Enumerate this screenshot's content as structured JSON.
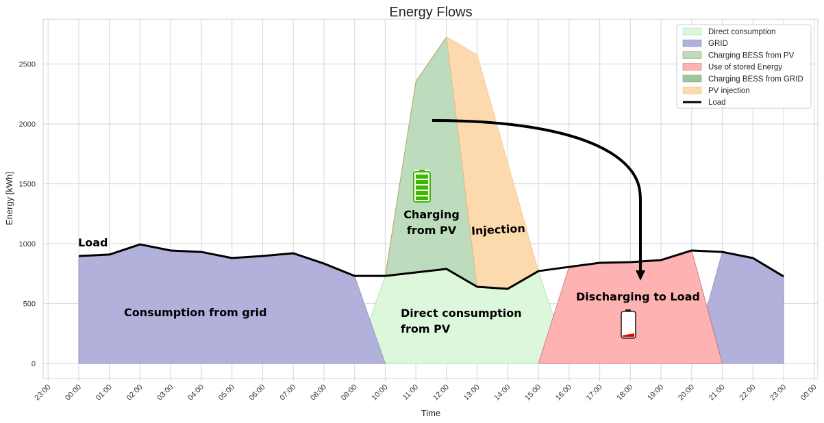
{
  "chart_data": {
    "type": "area",
    "title": "Energy Flows",
    "xlabel": "Time",
    "ylabel": "Energy [kWh]",
    "x_tick_labels": [
      "23:00",
      "00:00",
      "01:00",
      "02:00",
      "03:00",
      "04:00",
      "05:00",
      "06:00",
      "07:00",
      "08:00",
      "09:00",
      "10:00",
      "11:00",
      "12:00",
      "13:00",
      "14:00",
      "15:00",
      "16:00",
      "17:00",
      "18:00",
      "19:00",
      "20:00",
      "21:00",
      "22:00",
      "23:00",
      "00:00"
    ],
    "y_ticks": [
      0,
      500,
      1000,
      1500,
      2000,
      2500
    ],
    "ylim": [
      -130,
      2870
    ],
    "grid": true,
    "legend_position": "top-right",
    "x": [
      "00:00",
      "01:00",
      "02:00",
      "03:00",
      "04:00",
      "05:00",
      "06:00",
      "07:00",
      "08:00",
      "09:00",
      "10:00",
      "11:00",
      "12:00",
      "13:00",
      "14:00",
      "15:00",
      "16:00",
      "17:00",
      "18:00",
      "19:00",
      "20:00",
      "21:00",
      "22:00",
      "23:00"
    ],
    "series": [
      {
        "name": "Direct consumption",
        "kind": "area",
        "stack": "ground",
        "color": "#dcf7dc",
        "edge": "#9ed99e",
        "values": [
          0,
          0,
          0,
          0,
          0,
          0,
          0,
          0,
          0,
          0,
          731,
          760,
          789,
          640,
          623,
          771,
          0,
          0,
          0,
          0,
          0,
          0,
          0,
          0
        ]
      },
      {
        "name": "GRID",
        "kind": "area",
        "stack": "ground",
        "color": "#b1b1dc",
        "edge": "#7f7fb5",
        "values": [
          897,
          909,
          994,
          943,
          931,
          880,
          897,
          920,
          834,
          731,
          0,
          0,
          0,
          0,
          0,
          0,
          0,
          0,
          0,
          0,
          0,
          931,
          880,
          726
        ]
      },
      {
        "name": "Charging BESS from PV",
        "kind": "area",
        "stack": "load",
        "color": "#bddbbd",
        "edge": "#b08030",
        "values": [
          0,
          0,
          0,
          0,
          0,
          0,
          0,
          0,
          0,
          0,
          0,
          1594,
          1937,
          0,
          0,
          0,
          0,
          0,
          0,
          0,
          0,
          0,
          0,
          0
        ]
      },
      {
        "name": "Use of stored Energy",
        "kind": "area",
        "stack": "ground",
        "color": "#ffb2b2",
        "edge": "#b86060",
        "values": [
          0,
          0,
          0,
          0,
          0,
          0,
          0,
          0,
          0,
          0,
          0,
          0,
          0,
          0,
          0,
          0,
          806,
          840,
          846,
          863,
          943,
          0,
          0,
          0
        ]
      },
      {
        "name": "Charging BESS from GRID",
        "kind": "area",
        "stack": "load",
        "color": "#9cc79c",
        "edge": "#5a8a5a",
        "values": [
          0,
          0,
          0,
          0,
          0,
          0,
          0,
          0,
          0,
          0,
          0,
          0,
          0,
          0,
          0,
          0,
          0,
          0,
          0,
          0,
          0,
          0,
          0,
          0
        ]
      },
      {
        "name": "PV injection",
        "kind": "area",
        "stack": "load+charging",
        "color": "#fdd9ae",
        "edge": "#f5c080",
        "values": [
          0,
          0,
          0,
          0,
          0,
          0,
          0,
          0,
          0,
          0,
          0,
          0,
          0,
          1937,
          1051,
          0,
          0,
          0,
          0,
          0,
          0,
          0,
          0,
          0
        ]
      },
      {
        "name": "Load",
        "kind": "line",
        "color": "#000000",
        "values": [
          897,
          909,
          994,
          943,
          931,
          880,
          897,
          920,
          834,
          731,
          731,
          760,
          789,
          640,
          623,
          771,
          806,
          840,
          846,
          863,
          943,
          931,
          880,
          726
        ]
      }
    ],
    "annotations": {
      "load": "Load",
      "grid": "Consumption from grid",
      "charging_1": "Charging",
      "charging_2": "from PV",
      "injection": "Injection",
      "direct_1": "Direct consumption",
      "direct_2": "from PV",
      "discharging": "Discharging to Load"
    },
    "icons": [
      "battery-full-icon",
      "battery-low-icon",
      "curved-arrow-icon"
    ]
  }
}
